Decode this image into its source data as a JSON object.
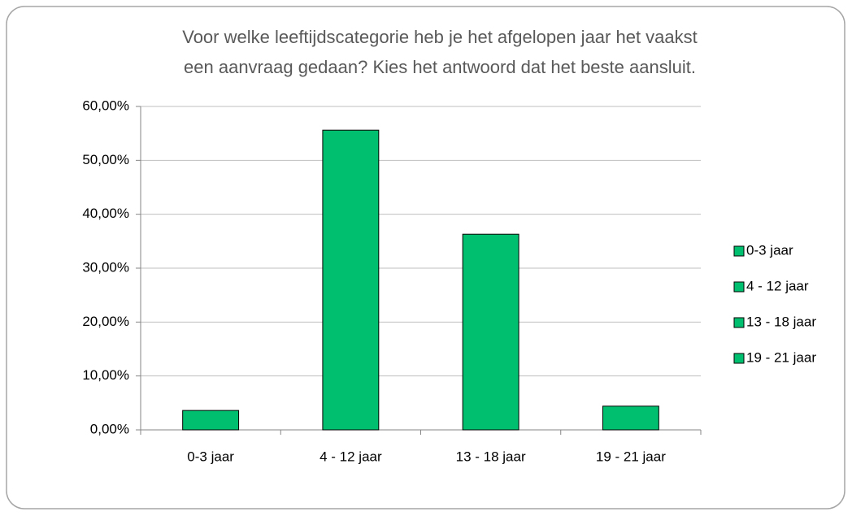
{
  "chart_data": {
    "type": "bar",
    "title": [
      "Voor welke leeftijdscategorie heb je het afgelopen jaar het vaakst",
      "een aanvraag gedaan? Kies het antwoord dat het beste aansluit."
    ],
    "categories": [
      "0-3 jaar",
      "4 - 12 jaar",
      "13 - 18 jaar",
      "19 - 21 jaar"
    ],
    "values": [
      3.6,
      55.6,
      36.3,
      4.4
    ],
    "color": "#00c06f",
    "ylim": [
      0,
      60
    ],
    "yticks": [
      {
        "value": 0,
        "label": "0,00%"
      },
      {
        "value": 10,
        "label": "10,00%"
      },
      {
        "value": 20,
        "label": "20,00%"
      },
      {
        "value": 30,
        "label": "30,00%"
      },
      {
        "value": 40,
        "label": "40,00%"
      },
      {
        "value": 50,
        "label": "50,00%"
      },
      {
        "value": 60,
        "label": "60,00%"
      }
    ],
    "grid": true,
    "legend": "right"
  }
}
